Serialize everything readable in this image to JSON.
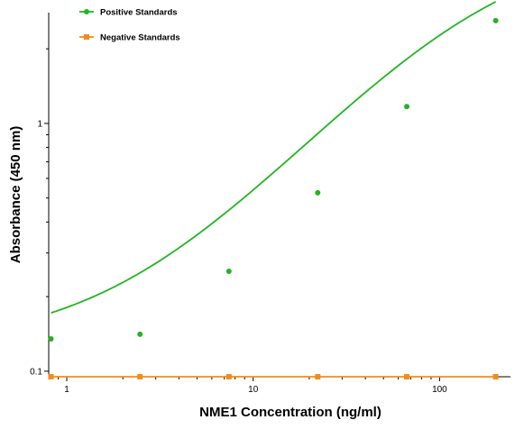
{
  "chart_data": {
    "type": "scatter",
    "xlabel": "NME1 Concentration (ng/ml)",
    "ylabel": "Absorbance (450 nm)",
    "xscale": "log",
    "yscale": "log",
    "xlim": [
      0.8,
      240
    ],
    "ylim": [
      0.095,
      2.8
    ],
    "x_ticks": [
      {
        "value": 1,
        "label": "1"
      },
      {
        "value": 10,
        "label": "10"
      },
      {
        "value": 100,
        "label": "100"
      }
    ],
    "y_ticks": [
      {
        "value": 0.1,
        "label": "0.1"
      },
      {
        "value": 1,
        "label": "1"
      }
    ],
    "grid": false,
    "legend_position": "top-left",
    "series": [
      {
        "name": "Positive Standards",
        "color": "#22b422",
        "marker": "circle",
        "x": [
          0.823,
          2.47,
          7.41,
          22.2,
          66.7,
          200
        ],
        "y": [
          0.135,
          0.141,
          0.253,
          0.525,
          1.17,
          2.6
        ],
        "fit_curve": {
          "model": "4PL",
          "bottom": 0.125,
          "top": 5.5,
          "ec50": 158,
          "hill": 0.9,
          "color": "#22b422"
        }
      },
      {
        "name": "Negative Standards",
        "color": "#f08c1e",
        "marker": "square",
        "x": [
          0.823,
          2.47,
          7.41,
          22.2,
          66.7,
          200
        ],
        "y": [
          0.095,
          0.095,
          0.095,
          0.095,
          0.095,
          0.095
        ],
        "connect_points": true
      }
    ]
  }
}
